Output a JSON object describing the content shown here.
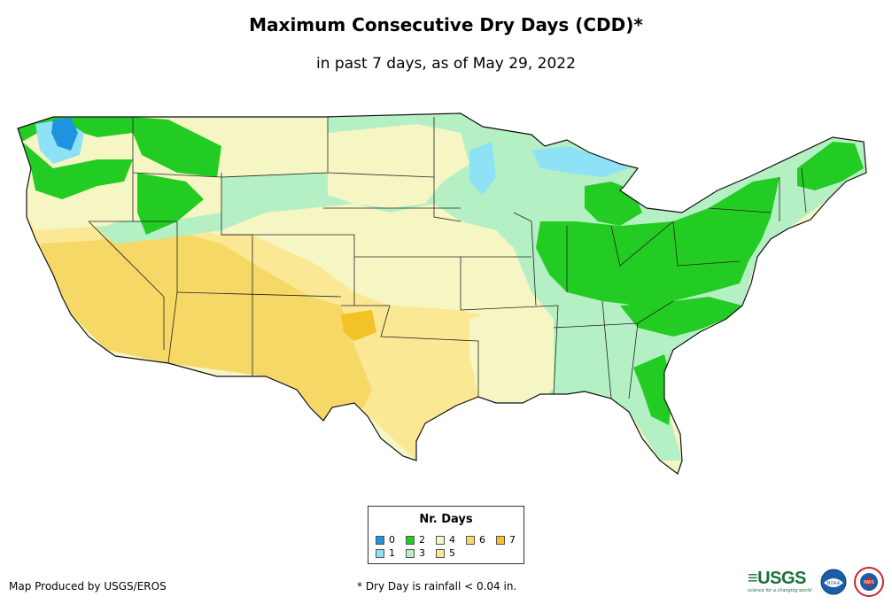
{
  "title": "Maximum Consecutive Dry Days (CDD)*",
  "subtitle": "in past 7 days, as of May 29, 2022",
  "legend": {
    "title": "Nr. Days",
    "items": [
      {
        "label": "0",
        "color": "#1f93e0"
      },
      {
        "label": "1",
        "color": "#8fe2f5"
      },
      {
        "label": "2",
        "color": "#22cc22"
      },
      {
        "label": "3",
        "color": "#b4f0c4"
      },
      {
        "label": "4",
        "color": "#f6f6c4"
      },
      {
        "label": "5",
        "color": "#fbe894"
      },
      {
        "label": "6",
        "color": "#f6d866"
      },
      {
        "label": "7",
        "color": "#f2c227"
      }
    ]
  },
  "credit": "Map Produced by USGS/EROS",
  "footnote": "* Dry Day is rainfall < 0.04 in.",
  "logos": {
    "usgs": "USGS",
    "usgs_tagline": "science for a changing world",
    "noaa": "NOAA",
    "nws": "NWS"
  }
}
